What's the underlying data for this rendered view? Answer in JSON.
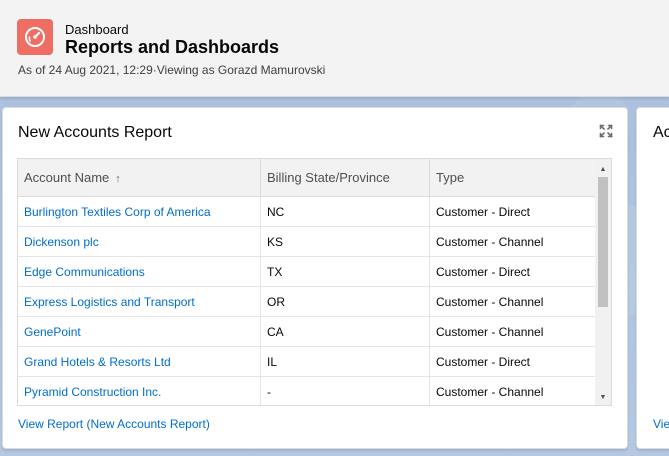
{
  "header": {
    "icon": "dashboard-gauge-icon",
    "icon_color": "#ef6e64",
    "eyebrow": "Dashboard",
    "title": "Reports and Dashboards",
    "subtitle": "As of 24 Aug 2021, 12:29·Viewing as Gorazd Mamurovski"
  },
  "card": {
    "title": "New Accounts Report",
    "expand_icon": "expand-icon",
    "columns": [
      {
        "label": "Account Name",
        "sort": "↑"
      },
      {
        "label": "Billing State/Province"
      },
      {
        "label": "Type"
      }
    ],
    "rows": [
      {
        "account": "Burlington Textiles Corp of America",
        "state": "NC",
        "type": "Customer - Direct"
      },
      {
        "account": "Dickenson plc",
        "state": "KS",
        "type": "Customer - Channel"
      },
      {
        "account": "Edge Communications",
        "state": "TX",
        "type": "Customer - Direct"
      },
      {
        "account": "Express Logistics and Transport",
        "state": "OR",
        "type": "Customer - Channel"
      },
      {
        "account": "GenePoint",
        "state": "CA",
        "type": "Customer - Channel"
      },
      {
        "account": "Grand Hotels & Resorts Ltd",
        "state": "IL",
        "type": "Customer - Direct"
      },
      {
        "account": "Pyramid Construction Inc.",
        "state": "-",
        "type": "Customer - Channel"
      }
    ],
    "footer_link": "View Report (New Accounts Report)"
  },
  "card2": {
    "title": "Ac",
    "footer_link": "Vie"
  },
  "colors": {
    "link": "#006dcc",
    "accent": "#ef6e64"
  }
}
